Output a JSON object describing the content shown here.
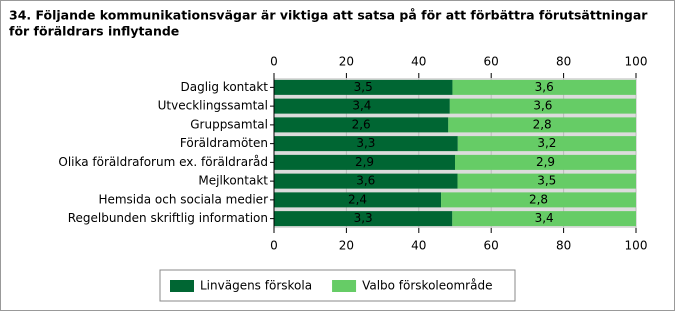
{
  "chart_data": {
    "type": "bar",
    "orientation": "horizontal",
    "stacking": "percent",
    "title": [
      "34. Följande kommunikationsvägar är viktiga att satsa på för att förbättra förutsättningar",
      "för föräldrars inflytande"
    ],
    "categories": [
      "Daglig kontakt",
      "Utvecklingssamtal",
      "Gruppsamtal",
      "Föräldramöten",
      "Olika föräldraforum ex. föräldraråd",
      "Mejlkontakt",
      "Hemsida och sociala medier",
      "Regelbunden skriftlig information"
    ],
    "series": [
      {
        "name": "Linvägens förskola",
        "color": "#006633",
        "values": [
          3.5,
          3.4,
          2.6,
          3.3,
          2.9,
          3.6,
          2.4,
          3.3
        ],
        "value_labels": [
          "3,5",
          "3,4",
          "2,6",
          "3,3",
          "2,9",
          "3,6",
          "2,4",
          "3,3"
        ]
      },
      {
        "name": "Valbo förskoleområde",
        "color": "#66cc66",
        "values": [
          3.6,
          3.6,
          2.8,
          3.2,
          2.9,
          3.5,
          2.8,
          3.4
        ],
        "value_labels": [
          "3,6",
          "3,6",
          "2,8",
          "3,2",
          "2,9",
          "3,5",
          "2,8",
          "3,4"
        ]
      }
    ],
    "xlim": [
      0,
      100
    ],
    "xticks": [
      0,
      20,
      40,
      60,
      80,
      100
    ],
    "grid": true,
    "legend": "bottom"
  }
}
